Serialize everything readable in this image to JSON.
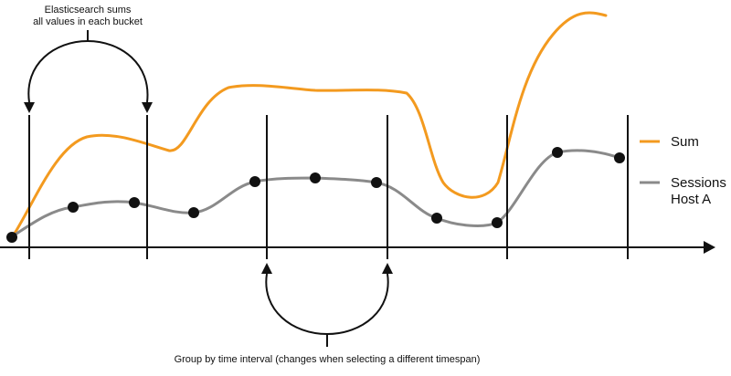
{
  "annotations": {
    "top_line1": "Elasticsearch sums",
    "top_line2": "all values in each bucket",
    "bottom": "Group by time interval (changes when selecting a different timespan)"
  },
  "legend": {
    "sum_label": "Sum",
    "sessions_label_line1": "Sessions",
    "sessions_label_line2": "Host A"
  },
  "colors": {
    "sum": "#f39a1f",
    "sessions": "#8a8a8a",
    "axis": "#111111",
    "marker": "#111111",
    "background": "#ffffff"
  },
  "icons": {
    "axis_arrow": "right-arrowhead",
    "bracket_arrows": "down-arrowheads and up-arrowheads"
  }
}
